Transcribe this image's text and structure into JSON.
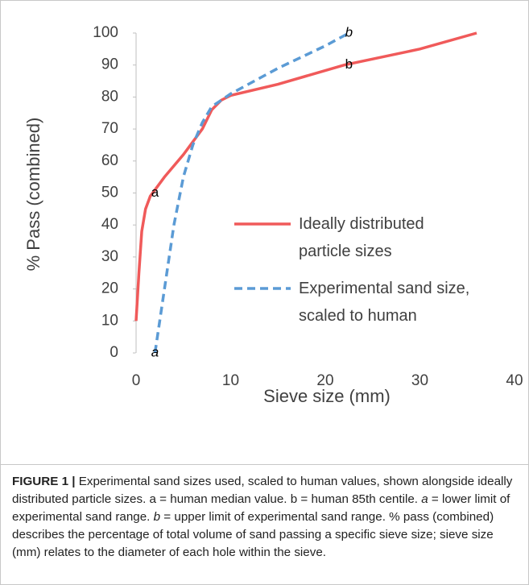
{
  "chart_data": {
    "type": "line",
    "xlabel": "Sieve size (mm)",
    "ylabel": "% Pass (combined)",
    "xlim": [
      0,
      40
    ],
    "xticks": [
      0,
      10,
      20,
      30,
      40
    ],
    "ylim": [
      0,
      100
    ],
    "yticks": [
      0,
      10,
      20,
      30,
      40,
      50,
      60,
      70,
      80,
      90,
      100
    ],
    "series": [
      {
        "name": "Ideally distributed\nparticle sizes",
        "color": "#f05a5a",
        "dash": false,
        "x": [
          0,
          0.3,
          0.6,
          1,
          1.5,
          2,
          3,
          5,
          7,
          8,
          9,
          10,
          15,
          22,
          30,
          36
        ],
        "y": [
          10,
          25,
          38,
          45,
          49,
          51,
          55,
          62,
          70,
          76,
          79,
          80.5,
          84,
          90,
          95,
          100
        ]
      },
      {
        "name": "Experimental sand size,\nscaled to human",
        "color": "#5b9bd5",
        "dash": true,
        "x": [
          2,
          3,
          4,
          5,
          6,
          7,
          8,
          10,
          15,
          20,
          22.5
        ],
        "y": [
          0,
          20,
          40,
          55,
          65,
          72,
          77,
          81,
          89,
          96,
          100
        ]
      }
    ],
    "annotations": [
      {
        "text": "a",
        "x": 2,
        "y": 50,
        "italic": false
      },
      {
        "text": "b",
        "x": 22.5,
        "y": 90,
        "italic": false
      },
      {
        "text": "a",
        "x": 2,
        "y": 0,
        "italic": true
      },
      {
        "text": "b",
        "x": 22.5,
        "y": 100,
        "italic": true
      }
    ]
  },
  "caption": [
    {
      "text": "FIGURE 1 |",
      "bold": true
    },
    {
      "text": " Experimental sand sizes used, scaled to human values, shown alongside ideally distributed particle sizes. a = human median value. b = human 85th centile. "
    },
    {
      "text": "a",
      "italic": true
    },
    {
      "text": " = lower limit of experimental sand range. "
    },
    {
      "text": "b",
      "italic": true
    },
    {
      "text": " = upper limit of experimental sand range. % pass (combined) describes the percentage of total volume of sand passing a specific sieve size; sieve size (mm) relates to the diameter of each hole within the sieve."
    }
  ]
}
